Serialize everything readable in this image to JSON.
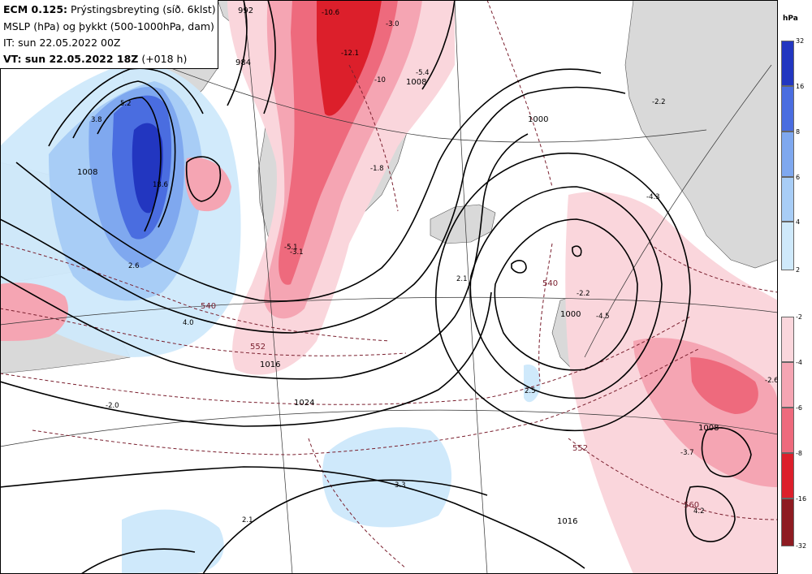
{
  "header": {
    "model_prefix": "ECM 0.125:",
    "model_desc": " Prýstingsbreyting (síð. 6klst)",
    "line2": "MSLP (hPa) og þykkt (500-1000hPa, dam)",
    "line3": "IT: sun 22.05.2022 00Z",
    "line4_prefix": "VT: sun 22.05.2022 18Z",
    "line4_suffix": " (+018 h)"
  },
  "legend": {
    "unit": "hPa",
    "colors_increase": [
      "#2236c0",
      "#4a6de0",
      "#7fa8ef",
      "#a8cdf6",
      "#cfe9fb"
    ],
    "colors_decrease": [
      "#fad6dc",
      "#f5a5b3",
      "#ee6a7d",
      "#dc1f2b",
      "#8e1b22"
    ],
    "upper_ticks": [
      "32",
      "16",
      "8",
      "6",
      "4",
      "2"
    ],
    "lower_ticks": [
      "-2",
      "-4",
      "-6",
      "-8",
      "-16",
      "-32"
    ]
  },
  "isobar_labels": [
    {
      "text": "1000"
    },
    {
      "text": "1008"
    },
    {
      "text": "1016"
    },
    {
      "text": "1024"
    },
    {
      "text": "1016"
    },
    {
      "text": "1008"
    },
    {
      "text": "1000"
    },
    {
      "text": "992"
    },
    {
      "text": "984"
    },
    {
      "text": "1008"
    }
  ],
  "thickness_labels": [
    {
      "text": "540"
    },
    {
      "text": "552"
    },
    {
      "text": "540"
    },
    {
      "text": "552"
    },
    {
      "text": "560"
    }
  ],
  "value_labels": [
    {
      "text": "-10.6"
    },
    {
      "text": "-3.0"
    },
    {
      "text": "-12.1"
    },
    {
      "text": "-10"
    },
    {
      "text": "-5.4"
    },
    {
      "text": "5.2"
    },
    {
      "text": "3.8"
    },
    {
      "text": "18.6"
    },
    {
      "text": "2.6"
    },
    {
      "text": "4.0"
    },
    {
      "text": "-2.0"
    },
    {
      "text": "2.1"
    },
    {
      "text": "-5.1"
    },
    {
      "text": "-3.1"
    },
    {
      "text": "-1.8"
    },
    {
      "text": "2.1"
    },
    {
      "text": "3.3"
    },
    {
      "text": "2.5"
    },
    {
      "text": "-2.2"
    },
    {
      "text": "-4.5"
    },
    {
      "text": "-4.3"
    },
    {
      "text": "-2.2"
    },
    {
      "text": "-2.6"
    },
    {
      "text": "-3.7"
    },
    {
      "text": "4.2"
    }
  ],
  "colors": {
    "isobar": "#000000",
    "thickness": "#7a1f2e",
    "land": "#d9d9d9",
    "increase_main": "#7fa8ef",
    "decrease_main": "#ee6a7d"
  }
}
